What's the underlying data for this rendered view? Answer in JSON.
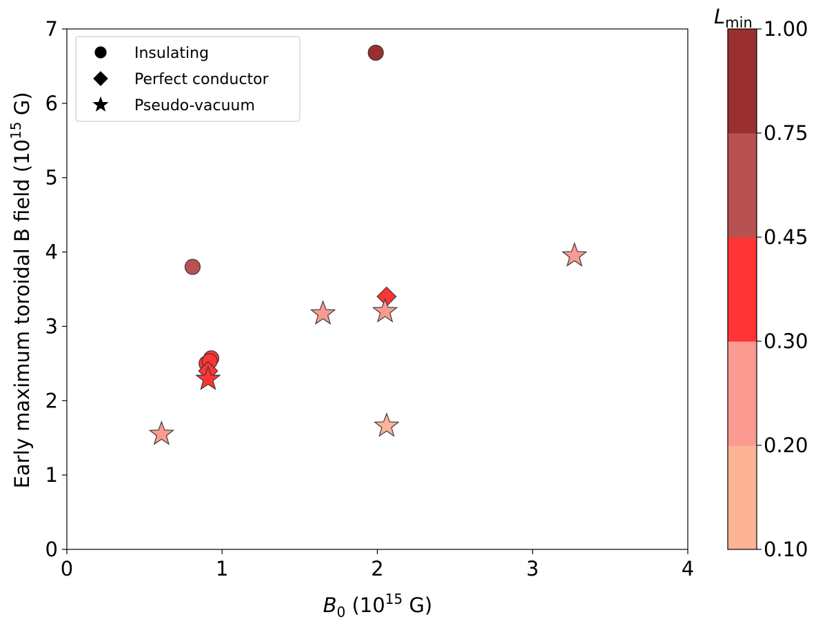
{
  "chart_data": {
    "type": "scatter",
    "xlabel_main": "B",
    "xlabel_sub": "0",
    "xlabel_rest": " (10",
    "xlabel_sup": "15",
    "xlabel_end": " G)",
    "ylabel_main": "Early maximum toroidal B field (10",
    "ylabel_sup": "15",
    "ylabel_end": " G)",
    "xlim": [
      0,
      4
    ],
    "ylim": [
      0,
      7
    ],
    "xticks": [
      0,
      1,
      2,
      3,
      4
    ],
    "yticks": [
      0,
      1,
      2,
      3,
      4,
      5,
      6,
      7
    ],
    "grid": false,
    "legend_position": "top-left",
    "legend": [
      {
        "marker": "circle",
        "label": "Insulating"
      },
      {
        "marker": "diamond",
        "label": "Perfect conductor"
      },
      {
        "marker": "star",
        "label": "Pseudo-vacuum"
      }
    ],
    "colorbar": {
      "label_main": "L",
      "label_sub": "min",
      "boundaries": [
        0.1,
        0.2,
        0.3,
        0.45,
        0.75,
        1.0
      ],
      "tick_labels": [
        "0.10",
        "0.20",
        "0.30",
        "0.45",
        "0.75",
        "1.00"
      ],
      "colors": [
        "#fdb396",
        "#fa9a90",
        "#ff3434",
        "#b85151",
        "#9a2f2f"
      ]
    },
    "series": [
      {
        "name": "Insulating",
        "marker": "circle",
        "points": [
          {
            "x": 1.99,
            "y": 6.68,
            "lmin": 0.85
          },
          {
            "x": 0.81,
            "y": 3.8,
            "lmin": 0.6
          },
          {
            "x": 0.9,
            "y": 2.5,
            "lmin": 0.38
          },
          {
            "x": 0.93,
            "y": 2.57,
            "lmin": 0.38
          },
          {
            "x": 0.92,
            "y": 2.53,
            "lmin": 0.38
          }
        ]
      },
      {
        "name": "Perfect conductor",
        "marker": "diamond",
        "points": [
          {
            "x": 2.06,
            "y": 3.4,
            "lmin": 0.38
          },
          {
            "x": 0.91,
            "y": 2.4,
            "lmin": 0.38
          }
        ]
      },
      {
        "name": "Pseudo-vacuum",
        "marker": "star",
        "points": [
          {
            "x": 3.27,
            "y": 3.95,
            "lmin": 0.25
          },
          {
            "x": 1.65,
            "y": 3.17,
            "lmin": 0.25
          },
          {
            "x": 2.05,
            "y": 3.2,
            "lmin": 0.25
          },
          {
            "x": 0.91,
            "y": 2.29,
            "lmin": 0.38
          },
          {
            "x": 0.61,
            "y": 1.55,
            "lmin": 0.25
          },
          {
            "x": 2.06,
            "y": 1.66,
            "lmin": 0.15
          }
        ]
      }
    ]
  }
}
